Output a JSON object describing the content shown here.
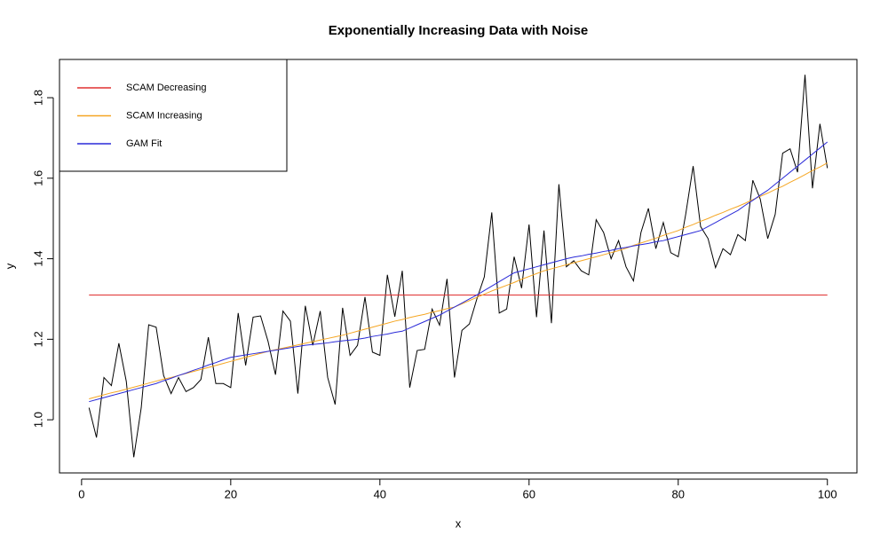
{
  "chart_data": {
    "type": "line",
    "title": "Exponentially Increasing Data with Noise",
    "x_label": "x",
    "y_label": "y",
    "x": [
      1,
      2,
      3,
      4,
      5,
      6,
      7,
      8,
      9,
      10,
      11,
      12,
      13,
      14,
      15,
      16,
      17,
      18,
      19,
      20,
      21,
      22,
      23,
      24,
      25,
      26,
      27,
      28,
      29,
      30,
      31,
      32,
      33,
      34,
      35,
      36,
      37,
      38,
      39,
      40,
      41,
      42,
      43,
      44,
      45,
      46,
      47,
      48,
      49,
      50,
      51,
      52,
      53,
      54,
      55,
      56,
      57,
      58,
      59,
      60,
      61,
      62,
      63,
      64,
      65,
      66,
      67,
      68,
      69,
      70,
      71,
      72,
      73,
      74,
      75,
      76,
      77,
      78,
      79,
      80,
      81,
      82,
      83,
      84,
      85,
      86,
      87,
      88,
      89,
      90,
      91,
      92,
      93,
      94,
      95,
      96,
      97,
      98,
      99,
      100
    ],
    "series": [
      {
        "color": "#000000",
        "values": [
          1.03,
          0.956,
          1.105,
          1.085,
          1.19,
          1.095,
          0.907,
          1.03,
          1.236,
          1.23,
          1.11,
          1.065,
          1.105,
          1.07,
          1.08,
          1.1,
          1.205,
          1.09,
          1.09,
          1.08,
          1.265,
          1.135,
          1.255,
          1.258,
          1.195,
          1.112,
          1.27,
          1.245,
          1.065,
          1.283,
          1.185,
          1.27,
          1.105,
          1.038,
          1.278,
          1.16,
          1.185,
          1.305,
          1.168,
          1.16,
          1.36,
          1.256,
          1.37,
          1.08,
          1.172,
          1.175,
          1.275,
          1.235,
          1.35,
          1.105,
          1.222,
          1.238,
          1.3,
          1.355,
          1.515,
          1.265,
          1.275,
          1.405,
          1.327,
          1.485,
          1.255,
          1.47,
          1.24,
          1.585,
          1.38,
          1.395,
          1.37,
          1.36,
          1.497,
          1.465,
          1.4,
          1.445,
          1.38,
          1.345,
          1.465,
          1.525,
          1.425,
          1.49,
          1.415,
          1.405,
          1.51,
          1.63,
          1.48,
          1.45,
          1.378,
          1.425,
          1.41,
          1.46,
          1.445,
          1.595,
          1.548,
          1.45,
          1.51,
          1.662,
          1.673,
          1.615,
          1.857,
          1.575,
          1.735,
          1.625
        ]
      },
      {
        "name": "SCAM Decreasing",
        "color": "#e03030",
        "values": [
          1.31,
          1.31,
          1.31,
          1.31,
          1.31,
          1.31,
          1.31,
          1.31,
          1.31,
          1.31,
          1.31,
          1.31,
          1.31,
          1.31,
          1.31,
          1.31,
          1.31,
          1.31,
          1.31,
          1.31,
          1.31,
          1.31,
          1.31,
          1.31,
          1.31,
          1.31,
          1.31,
          1.31,
          1.31,
          1.31,
          1.31,
          1.31,
          1.31,
          1.31,
          1.31,
          1.31,
          1.31,
          1.31,
          1.31,
          1.31,
          1.31,
          1.31,
          1.31,
          1.31,
          1.31,
          1.31,
          1.31,
          1.31,
          1.31,
          1.31,
          1.31,
          1.31,
          1.31,
          1.31,
          1.31,
          1.31,
          1.31,
          1.31,
          1.31,
          1.31,
          1.31,
          1.31,
          1.31,
          1.31,
          1.31,
          1.31,
          1.31,
          1.31,
          1.31,
          1.31,
          1.31,
          1.31,
          1.31,
          1.31,
          1.31,
          1.31,
          1.31,
          1.31,
          1.31,
          1.31,
          1.31,
          1.31,
          1.31,
          1.31,
          1.31,
          1.31,
          1.31,
          1.31,
          1.31,
          1.31,
          1.31,
          1.31,
          1.31,
          1.31,
          1.31,
          1.31,
          1.31,
          1.31,
          1.31,
          1.31
        ]
      },
      {
        "name": "SCAM Increasing",
        "color": "#f5a623",
        "values": [
          1.052,
          1.057,
          1.062,
          1.067,
          1.071,
          1.076,
          1.081,
          1.086,
          1.091,
          1.096,
          1.101,
          1.105,
          1.11,
          1.115,
          1.12,
          1.125,
          1.13,
          1.135,
          1.14,
          1.145,
          1.15,
          1.155,
          1.16,
          1.165,
          1.17,
          1.174,
          1.178,
          1.182,
          1.186,
          1.19,
          1.194,
          1.198,
          1.202,
          1.206,
          1.21,
          1.215,
          1.22,
          1.225,
          1.23,
          1.235,
          1.24,
          1.245,
          1.249,
          1.254,
          1.258,
          1.262,
          1.267,
          1.271,
          1.276,
          1.28,
          1.288,
          1.296,
          1.304,
          1.312,
          1.32,
          1.327,
          1.334,
          1.341,
          1.349,
          1.356,
          1.363,
          1.37,
          1.375,
          1.38,
          1.385,
          1.39,
          1.395,
          1.4,
          1.405,
          1.41,
          1.415,
          1.42,
          1.426,
          1.433,
          1.439,
          1.445,
          1.451,
          1.458,
          1.464,
          1.47,
          1.478,
          1.485,
          1.493,
          1.5,
          1.508,
          1.515,
          1.523,
          1.53,
          1.538,
          1.547,
          1.555,
          1.563,
          1.572,
          1.58,
          1.59,
          1.599,
          1.609,
          1.619,
          1.628,
          1.638
        ]
      },
      {
        "name": "GAM Fit",
        "color": "#2a2ad8",
        "values": [
          1.045,
          1.05,
          1.055,
          1.06,
          1.065,
          1.07,
          1.075,
          1.08,
          1.085,
          1.09,
          1.097,
          1.103,
          1.11,
          1.116,
          1.123,
          1.129,
          1.136,
          1.142,
          1.149,
          1.155,
          1.158,
          1.161,
          1.164,
          1.167,
          1.17,
          1.173,
          1.176,
          1.179,
          1.182,
          1.185,
          1.187,
          1.189,
          1.191,
          1.194,
          1.196,
          1.198,
          1.2,
          1.203,
          1.207,
          1.21,
          1.213,
          1.217,
          1.22,
          1.228,
          1.236,
          1.244,
          1.252,
          1.26,
          1.27,
          1.28,
          1.29,
          1.3,
          1.31,
          1.321,
          1.332,
          1.343,
          1.354,
          1.365,
          1.37,
          1.375,
          1.38,
          1.385,
          1.39,
          1.395,
          1.4,
          1.404,
          1.407,
          1.411,
          1.414,
          1.418,
          1.421,
          1.425,
          1.428,
          1.432,
          1.435,
          1.438,
          1.442,
          1.445,
          1.45,
          1.455,
          1.46,
          1.465,
          1.47,
          1.48,
          1.49,
          1.5,
          1.51,
          1.52,
          1.533,
          1.545,
          1.558,
          1.57,
          1.585,
          1.6,
          1.615,
          1.63,
          1.645,
          1.66,
          1.675,
          1.69
        ]
      }
    ],
    "xlim": [
      -2.96,
      103.96
    ],
    "ylim": [
      0.868,
      1.895
    ],
    "xticks": [
      0,
      20,
      40,
      60,
      80,
      100
    ],
    "yticks": [
      {
        "value": 1.0,
        "label": "1.0"
      },
      1.2,
      1.4,
      1.6,
      1.8
    ],
    "grid": false,
    "legend": "topleft"
  }
}
